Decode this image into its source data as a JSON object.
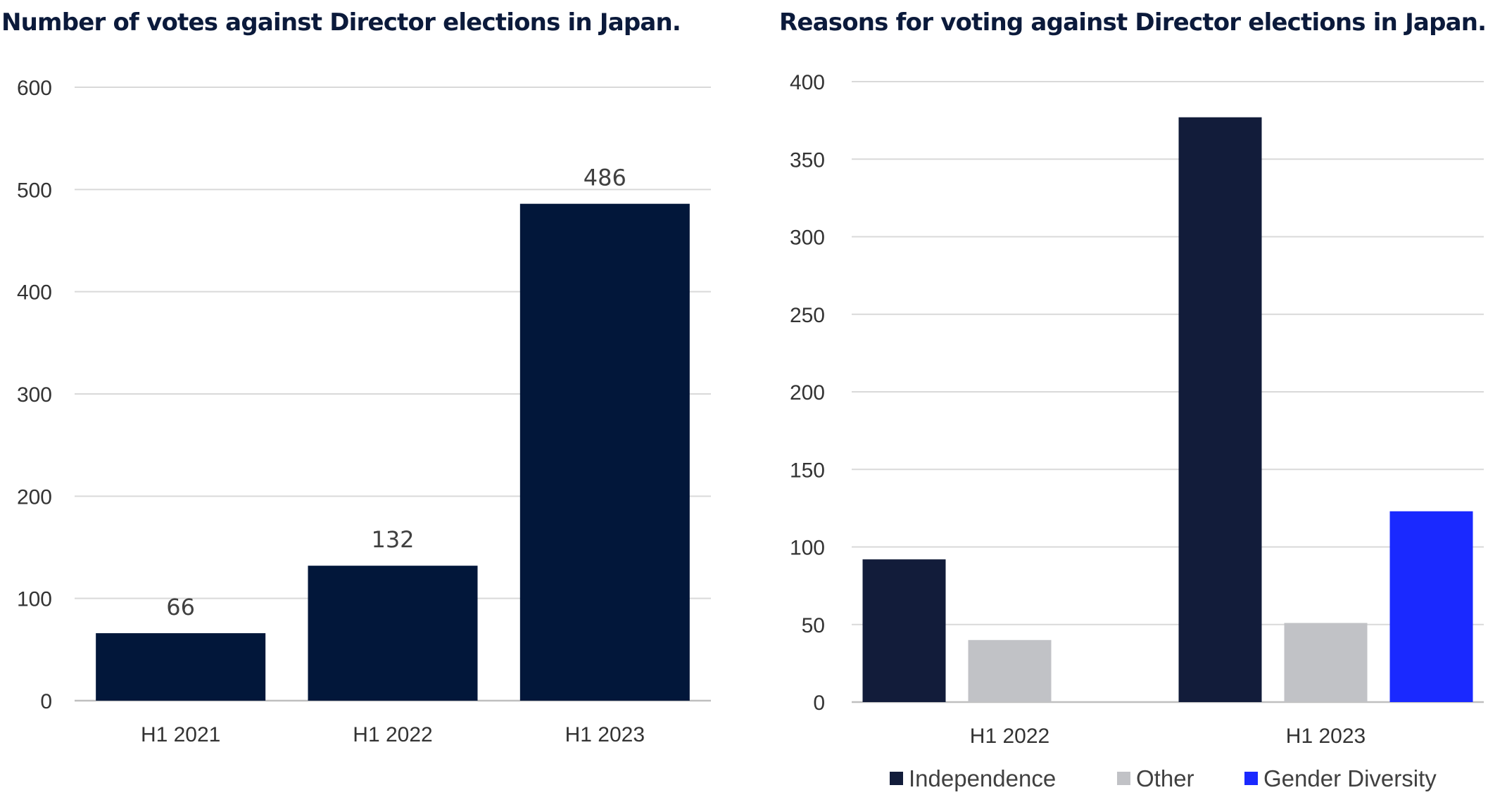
{
  "chart_data": [
    {
      "type": "bar",
      "title": "Number of votes against Director elections in Japan.",
      "categories": [
        "H1 2021",
        "H1 2022",
        "H1 2023"
      ],
      "values": [
        66,
        132,
        486
      ],
      "data_labels": [
        "66",
        "132",
        "486"
      ],
      "ylim": [
        0,
        600
      ],
      "yticks": [
        0,
        100,
        200,
        300,
        400,
        500,
        600
      ],
      "grid": true,
      "legend": "none",
      "colors": [
        "#02173a"
      ]
    },
    {
      "type": "bar",
      "title": "Reasons for voting against Director elections in Japan.",
      "categories": [
        "H1 2022",
        "H1 2023"
      ],
      "series": [
        {
          "name": "Independence",
          "values": [
            92,
            377
          ]
        },
        {
          "name": "Other",
          "values": [
            40,
            51
          ]
        },
        {
          "name": "Gender Diversity",
          "values": [
            0,
            123
          ]
        }
      ],
      "ylim": [
        0,
        400
      ],
      "yticks": [
        0,
        50,
        100,
        150,
        200,
        250,
        300,
        350,
        400
      ],
      "grid": true,
      "legend": "bottom",
      "colors": [
        "#121c3a",
        "#c1c2c6",
        "#1a29ff"
      ]
    }
  ]
}
